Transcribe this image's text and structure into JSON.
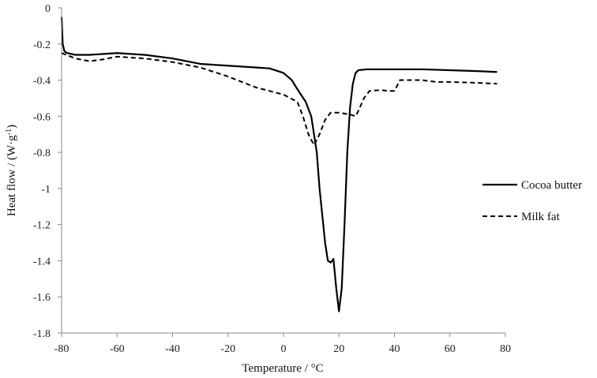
{
  "chart_data": {
    "type": "line",
    "title": "",
    "xlabel": "Temperature / °C",
    "ylabel_main": "Heat flow / (W·g",
    "ylabel_sup": "-1",
    "ylabel_close": ")",
    "xlim": [
      -80,
      80
    ],
    "ylim": [
      -1.8,
      0
    ],
    "x_ticks": [
      -80,
      -60,
      -40,
      -20,
      0,
      20,
      40,
      60,
      80
    ],
    "y_ticks": [
      0,
      -0.2,
      -0.4,
      -0.6,
      -0.8,
      -1,
      -1.2,
      -1.4,
      -1.6,
      -1.8
    ],
    "x_tick_labels": [
      "-80",
      "-60",
      "-40",
      "-20",
      "0",
      "20",
      "40",
      "60",
      "80"
    ],
    "y_tick_labels": [
      "0",
      "-0.2",
      "-0.4",
      "-0.6",
      "-0.8",
      "-1",
      "-1.2",
      "-1.4",
      "-1.6",
      "-1.8"
    ],
    "grid": false,
    "legend_position": "right",
    "series": [
      {
        "name": "Cocoa butter",
        "color": "#000000",
        "style": "solid",
        "points": [
          [
            -80,
            -0.05
          ],
          [
            -79.6,
            -0.2
          ],
          [
            -79,
            -0.24
          ],
          [
            -78,
            -0.25
          ],
          [
            -75,
            -0.26
          ],
          [
            -70,
            -0.26
          ],
          [
            -60,
            -0.25
          ],
          [
            -50,
            -0.26
          ],
          [
            -40,
            -0.28
          ],
          [
            -30,
            -0.31
          ],
          [
            -20,
            -0.32
          ],
          [
            -10,
            -0.33
          ],
          [
            -5,
            -0.335
          ],
          [
            0,
            -0.36
          ],
          [
            3,
            -0.4
          ],
          [
            5,
            -0.45
          ],
          [
            8,
            -0.52
          ],
          [
            10,
            -0.6
          ],
          [
            12,
            -0.8
          ],
          [
            13,
            -1.0
          ],
          [
            14,
            -1.15
          ],
          [
            15,
            -1.3
          ],
          [
            16,
            -1.4
          ],
          [
            17,
            -1.41
          ],
          [
            18,
            -1.39
          ],
          [
            19,
            -1.55
          ],
          [
            20,
            -1.68
          ],
          [
            21,
            -1.55
          ],
          [
            22,
            -1.2
          ],
          [
            23,
            -0.8
          ],
          [
            24,
            -0.55
          ],
          [
            25,
            -0.42
          ],
          [
            26,
            -0.36
          ],
          [
            27,
            -0.345
          ],
          [
            30,
            -0.34
          ],
          [
            40,
            -0.34
          ],
          [
            50,
            -0.34
          ],
          [
            60,
            -0.345
          ],
          [
            70,
            -0.35
          ],
          [
            77,
            -0.355
          ]
        ]
      },
      {
        "name": "Milk fat",
        "color": "#000000",
        "style": "dashed",
        "points": [
          [
            -80,
            -0.25
          ],
          [
            -75,
            -0.28
          ],
          [
            -70,
            -0.295
          ],
          [
            -65,
            -0.285
          ],
          [
            -60,
            -0.27
          ],
          [
            -50,
            -0.28
          ],
          [
            -40,
            -0.3
          ],
          [
            -30,
            -0.33
          ],
          [
            -20,
            -0.38
          ],
          [
            -15,
            -0.41
          ],
          [
            -10,
            -0.44
          ],
          [
            -5,
            -0.46
          ],
          [
            0,
            -0.48
          ],
          [
            5,
            -0.52
          ],
          [
            7,
            -0.6
          ],
          [
            9,
            -0.7
          ],
          [
            11,
            -0.76
          ],
          [
            13,
            -0.7
          ],
          [
            15,
            -0.62
          ],
          [
            17,
            -0.58
          ],
          [
            20,
            -0.58
          ],
          [
            24,
            -0.59
          ],
          [
            26,
            -0.6
          ],
          [
            27,
            -0.57
          ],
          [
            29,
            -0.5
          ],
          [
            31,
            -0.46
          ],
          [
            35,
            -0.455
          ],
          [
            38,
            -0.46
          ],
          [
            40,
            -0.46
          ],
          [
            41,
            -0.43
          ],
          [
            42,
            -0.4
          ],
          [
            45,
            -0.4
          ],
          [
            50,
            -0.4
          ],
          [
            55,
            -0.41
          ],
          [
            60,
            -0.41
          ],
          [
            70,
            -0.415
          ],
          [
            77,
            -0.42
          ]
        ]
      }
    ]
  }
}
